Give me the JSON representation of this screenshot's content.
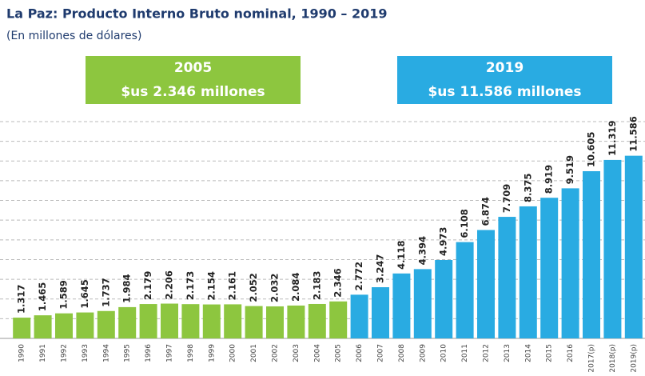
{
  "chart_data": {
    "type": "bar",
    "title": "La Paz: Producto Interno Bruto nominal, 1990 – 2019",
    "subtitle": "(En millones de dólares)",
    "categories": [
      "1990",
      "1991",
      "1992",
      "1993",
      "1994",
      "1995",
      "1996",
      "1997",
      "1998",
      "1999",
      "2000",
      "2001",
      "2002",
      "2003",
      "2004",
      "2005",
      "2006",
      "2007",
      "2008",
      "2009",
      "2010",
      "2011",
      "2012",
      "2013",
      "2014",
      "2015",
      "2016",
      "2017(p)",
      "2018(p)",
      "2019(p)"
    ],
    "values": [
      1317,
      1465,
      1589,
      1645,
      1737,
      1984,
      2179,
      2206,
      2173,
      2154,
      2161,
      2052,
      2032,
      2084,
      2183,
      2346,
      2772,
      3247,
      4118,
      4394,
      4973,
      6108,
      6874,
      7709,
      8375,
      8919,
      9519,
      10605,
      11319,
      11586
    ],
    "value_labels": [
      "1.317",
      "1.465",
      "1.589",
      "1.645",
      "1.737",
      "1.984",
      "2.179",
      "2.206",
      "2.173",
      "2.154",
      "2.161",
      "2.052",
      "2.032",
      "2.084",
      "2.183",
      "2.346",
      "2.772",
      "3.247",
      "4.118",
      "4.394",
      "4.973",
      "6.108",
      "6.874",
      "7.709",
      "8.375",
      "8.919",
      "9.519",
      "10.605",
      "11.319",
      "11.586"
    ],
    "colors": [
      "#8dc63f",
      "#8dc63f",
      "#8dc63f",
      "#8dc63f",
      "#8dc63f",
      "#8dc63f",
      "#8dc63f",
      "#8dc63f",
      "#8dc63f",
      "#8dc63f",
      "#8dc63f",
      "#8dc63f",
      "#8dc63f",
      "#8dc63f",
      "#8dc63f",
      "#8dc63f",
      "#29abe2",
      "#29abe2",
      "#29abe2",
      "#29abe2",
      "#29abe2",
      "#29abe2",
      "#29abe2",
      "#29abe2",
      "#29abe2",
      "#29abe2",
      "#29abe2",
      "#29abe2",
      "#29abe2",
      "#29abe2"
    ],
    "ylim": [
      0,
      13750
    ],
    "yticks": [
      1250,
      2500,
      3750,
      5000,
      6250,
      7500,
      8750,
      10000,
      11250,
      12500,
      13750
    ],
    "grid": true,
    "annotations": [
      {
        "lines": [
          "2005",
          "$us 2.346 millones"
        ],
        "color": "#8dc63f"
      },
      {
        "lines": [
          "2019",
          "$us 11.586 millones"
        ],
        "color": "#29abe2"
      }
    ]
  }
}
